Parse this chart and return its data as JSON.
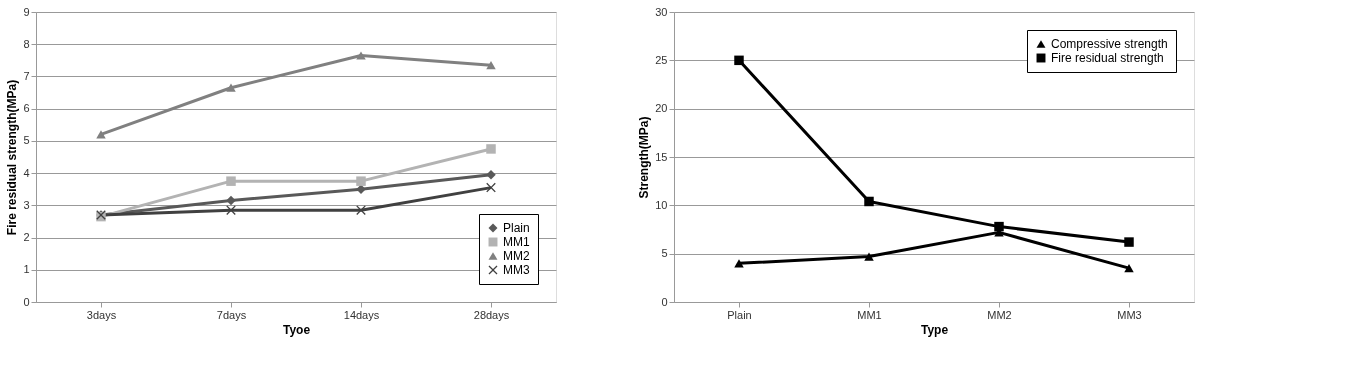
{
  "chart_data": [
    {
      "type": "line",
      "xlabel": "Tyoe",
      "ylabel": "Fire residual strength(MPa)",
      "categories": [
        "3days",
        "7days",
        "14days",
        "28days"
      ],
      "ylim": [
        0,
        9
      ],
      "yticks": [
        0,
        1,
        2,
        3,
        4,
        5,
        6,
        7,
        8,
        9
      ],
      "grid": "y",
      "legend": "bottom right",
      "series": [
        {
          "name": "Plain",
          "color": "#595959",
          "marker": "diamond",
          "values": [
            2.7,
            3.15,
            3.5,
            3.95
          ]
        },
        {
          "name": "MM1",
          "color": "#b3b3b3",
          "marker": "square",
          "values": [
            2.65,
            3.75,
            3.75,
            4.75
          ]
        },
        {
          "name": "MM2",
          "color": "#808080",
          "marker": "triangle",
          "values": [
            5.2,
            6.65,
            7.65,
            7.35
          ]
        },
        {
          "name": "MM3",
          "color": "#404040",
          "marker": "cross",
          "values": [
            2.7,
            2.85,
            2.85,
            3.55
          ]
        }
      ]
    },
    {
      "type": "line",
      "xlabel": "Type",
      "ylabel": "Strength(MPa)",
      "categories": [
        "Plain",
        "MM1",
        "MM2",
        "MM3"
      ],
      "ylim": [
        0,
        30
      ],
      "yticks": [
        0,
        5,
        10,
        15,
        20,
        25,
        30
      ],
      "grid": "y",
      "legend": "top right",
      "series": [
        {
          "name": "Compressive strength",
          "color": "#000000",
          "marker": "triangle",
          "values": [
            4,
            4.7,
            7.2,
            3.5
          ]
        },
        {
          "name": "Fire residual strength",
          "color": "#000000",
          "marker": "square",
          "values": [
            25,
            10.4,
            7.8,
            6.2
          ]
        }
      ]
    }
  ]
}
